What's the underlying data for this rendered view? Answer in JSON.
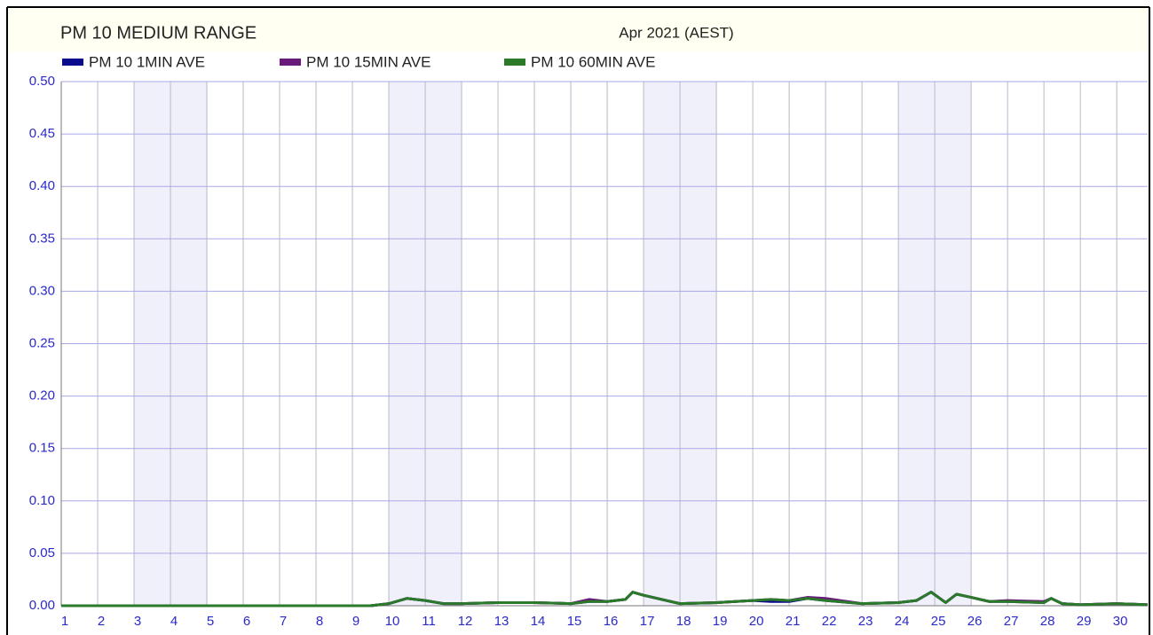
{
  "chart_data": {
    "type": "line",
    "title": "PM 10 MEDIUM RANGE",
    "subtitle": "Apr 2021 (AEST)",
    "x": [
      1,
      9.5,
      10,
      10.5,
      11,
      11.5,
      12,
      13,
      14,
      15,
      15.5,
      16,
      16.5,
      16.7,
      17,
      18,
      19,
      20,
      20.5,
      21,
      21.5,
      22,
      23,
      24,
      24.5,
      24.9,
      25.3,
      25.6,
      26,
      26.5,
      27,
      28,
      28.2,
      28.5,
      29,
      30,
      30.85
    ],
    "series": [
      {
        "name": "PM 10 1MIN AVE",
        "color": "#0a0a8c",
        "values": [
          0,
          0,
          0.002,
          0.007,
          0.005,
          0.002,
          0.002,
          0.003,
          0.003,
          0.002,
          0.004,
          0.004,
          0.006,
          0.013,
          0.01,
          0.002,
          0.003,
          0.005,
          0.004,
          0.004,
          0.007,
          0.005,
          0.002,
          0.003,
          0.005,
          0.013,
          0.003,
          0.011,
          0.008,
          0.004,
          0.004,
          0.003,
          0.007,
          0.002,
          0.001,
          0.002,
          0.001
        ]
      },
      {
        "name": "PM 10 15MIN AVE",
        "color": "#6a1a7a",
        "values": [
          0,
          0,
          0.002,
          0.007,
          0.005,
          0.002,
          0.002,
          0.003,
          0.003,
          0.002,
          0.006,
          0.004,
          0.006,
          0.013,
          0.01,
          0.002,
          0.003,
          0.005,
          0.006,
          0.005,
          0.008,
          0.007,
          0.002,
          0.003,
          0.005,
          0.013,
          0.003,
          0.011,
          0.008,
          0.004,
          0.005,
          0.004,
          0.007,
          0.002,
          0.001,
          0.002,
          0.001
        ]
      },
      {
        "name": "PM 10 60MIN AVE",
        "color": "#2a7a2a",
        "values": [
          0,
          0,
          0.002,
          0.007,
          0.005,
          0.002,
          0.002,
          0.003,
          0.003,
          0.002,
          0.004,
          0.004,
          0.006,
          0.013,
          0.01,
          0.002,
          0.003,
          0.005,
          0.006,
          0.005,
          0.007,
          0.005,
          0.002,
          0.003,
          0.005,
          0.013,
          0.003,
          0.011,
          0.008,
          0.004,
          0.004,
          0.003,
          0.007,
          0.002,
          0.001,
          0.002,
          0.001
        ]
      }
    ],
    "xlim": [
      1,
      30.85
    ],
    "xticks": [
      1,
      2,
      3,
      4,
      5,
      6,
      7,
      8,
      9,
      10,
      11,
      12,
      13,
      14,
      15,
      16,
      17,
      18,
      19,
      20,
      21,
      22,
      23,
      24,
      25,
      26,
      27,
      28,
      29,
      30
    ],
    "ylim": [
      0,
      0.5
    ],
    "yticks": [
      {
        "value": 0,
        "label": "0.00"
      },
      0.05,
      {
        "value": 0.1,
        "label": "0.10"
      },
      0.15,
      {
        "value": 0.2,
        "label": "0.20"
      },
      0.25,
      {
        "value": 0.3,
        "label": "0.30"
      },
      0.35,
      {
        "value": 0.4,
        "label": "0.40"
      },
      0.45,
      {
        "value": 0.5,
        "label": "0.50"
      }
    ],
    "shaded_x_ranges": [
      [
        3,
        5
      ],
      [
        10,
        12
      ],
      [
        17,
        19
      ],
      [
        24,
        26
      ]
    ],
    "grid": true
  }
}
